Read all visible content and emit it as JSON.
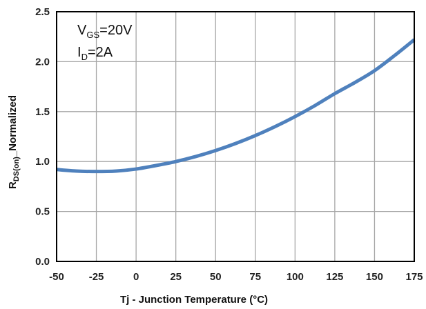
{
  "chart_data": {
    "type": "line",
    "title": "",
    "xlabel": "Tj - Junction Temperature (°C)",
    "ylabel": {
      "main": "R",
      "subscript": "DS(on)",
      "suffix": "_Normalized"
    },
    "annotations": [
      {
        "main": "V",
        "subscript": "GS",
        "suffix": "=20V"
      },
      {
        "main": "I",
        "subscript": "D",
        "suffix": "=2A"
      }
    ],
    "xlim": [
      -50,
      175
    ],
    "ylim": [
      0.0,
      2.5
    ],
    "x_ticks": [
      -50,
      -25,
      0,
      25,
      50,
      75,
      100,
      125,
      150,
      175
    ],
    "x_tick_labels": [
      "-50",
      "-25",
      "0",
      "25",
      "50",
      "75",
      "100",
      "125",
      "150",
      "175"
    ],
    "y_ticks": [
      0.0,
      0.5,
      1.0,
      1.5,
      2.0,
      2.5
    ],
    "y_tick_labels": [
      "0.0",
      "0.5",
      "1.0",
      "1.5",
      "2.0",
      "2.5"
    ],
    "grid": true,
    "legend": "none",
    "series": [
      {
        "color": "#4f81bd",
        "x": [
          -50,
          -37.5,
          -25,
          -12.5,
          0,
          12.5,
          25,
          37.5,
          50,
          62.5,
          75,
          87.5,
          100,
          112.5,
          125,
          137.5,
          150,
          162.5,
          175
        ],
        "y": [
          0.92,
          0.905,
          0.9,
          0.905,
          0.925,
          0.96,
          1.0,
          1.05,
          1.11,
          1.18,
          1.26,
          1.35,
          1.45,
          1.56,
          1.68,
          1.79,
          1.91,
          2.06,
          2.22
        ]
      }
    ]
  }
}
